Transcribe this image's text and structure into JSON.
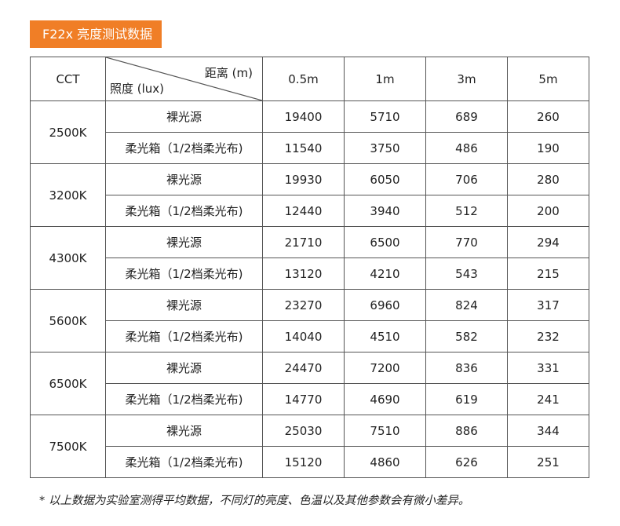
{
  "title": "F22x 亮度测试数据",
  "table": {
    "header_cct": "CCT",
    "header_distance": "距离 (m)",
    "header_lux": "照度 (lux)",
    "distances": [
      "0.5m",
      "1m",
      "3m",
      "5m"
    ],
    "groups": [
      {
        "cct": "2500K",
        "rows": [
          {
            "label": "裸光源",
            "values": [
              "19400",
              "5710",
              "689",
              "260"
            ]
          },
          {
            "label": "柔光箱（1/2档柔光布)",
            "values": [
              "11540",
              "3750",
              "486",
              "190"
            ]
          }
        ]
      },
      {
        "cct": "3200K",
        "rows": [
          {
            "label": "裸光源",
            "values": [
              "19930",
              "6050",
              "706",
              "280"
            ]
          },
          {
            "label": "柔光箱（1/2档柔光布)",
            "values": [
              "12440",
              "3940",
              "512",
              "200"
            ]
          }
        ]
      },
      {
        "cct": "4300K",
        "rows": [
          {
            "label": "裸光源",
            "values": [
              "21710",
              "6500",
              "770",
              "294"
            ]
          },
          {
            "label": "柔光箱（1/2档柔光布)",
            "values": [
              "13120",
              "4210",
              "543",
              "215"
            ]
          }
        ]
      },
      {
        "cct": "5600K",
        "rows": [
          {
            "label": "裸光源",
            "values": [
              "23270",
              "6960",
              "824",
              "317"
            ]
          },
          {
            "label": "柔光箱（1/2档柔光布)",
            "values": [
              "14040",
              "4510",
              "582",
              "232"
            ]
          }
        ]
      },
      {
        "cct": "6500K",
        "rows": [
          {
            "label": "裸光源",
            "values": [
              "24470",
              "7200",
              "836",
              "331"
            ]
          },
          {
            "label": "柔光箱（1/2档柔光布)",
            "values": [
              "14770",
              "4690",
              "619",
              "241"
            ]
          }
        ]
      },
      {
        "cct": "7500K",
        "rows": [
          {
            "label": "裸光源",
            "values": [
              "25030",
              "7510",
              "886",
              "344"
            ]
          },
          {
            "label": "柔光箱（1/2档柔光布)",
            "values": [
              "15120",
              "4860",
              "626",
              "251"
            ]
          }
        ]
      }
    ]
  },
  "footnote": "* 以上数据为实验室测得平均数据，不同灯的亮度、色温以及其他参数会有微小差异。"
}
